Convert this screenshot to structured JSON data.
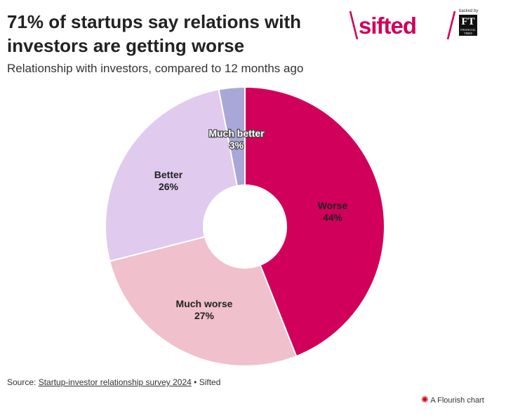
{
  "title": "71% of startups say relations with investors are getting worse",
  "subtitle": "Relationship with investors, compared to 12 months ago",
  "logo": {
    "brand": "sifted",
    "backed_by": "backed by",
    "ft": "FT",
    "ft_sub": "FINANCIAL TIMES",
    "color": "#d1005a"
  },
  "chart_data": {
    "type": "pie",
    "donut": true,
    "slices": [
      {
        "label": "Worse",
        "value": 44,
        "value_label": "44%",
        "color": "#d1005a",
        "text_color": "#222"
      },
      {
        "label": "Much worse",
        "value": 27,
        "value_label": "27%",
        "color": "#f0c0cc",
        "text_color": "#222"
      },
      {
        "label": "Better",
        "value": 26,
        "value_label": "26%",
        "color": "#e0caee",
        "text_color": "#222"
      },
      {
        "label": "Much better",
        "value": 3,
        "value_label": "3%",
        "color": "#a9a7d8",
        "text_color": "#ffffff"
      }
    ],
    "start_angle_deg": 0,
    "direction": "clockwise"
  },
  "source": {
    "prefix": "Source: ",
    "link_text": "Startup-investor relationship survey 2024",
    "suffix": " • Sifted"
  },
  "credit": {
    "text": "A Flourish chart",
    "icon": "flourish-burst-icon"
  }
}
